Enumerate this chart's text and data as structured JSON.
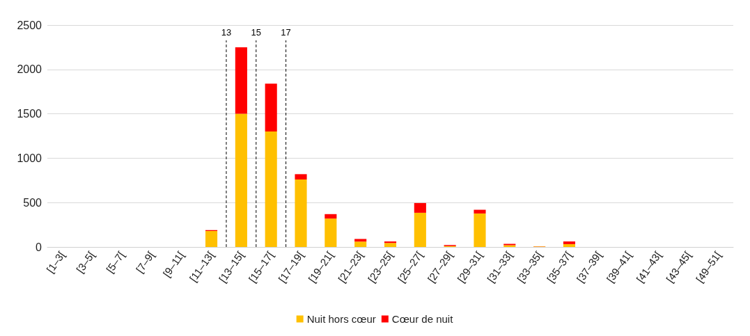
{
  "chart_data": {
    "type": "bar",
    "stacked": true,
    "categories": [
      "[1–3[",
      "[3–5[",
      "[5–7[",
      "[7–9[",
      "[9–11[",
      "[11–13[",
      "[13–15[",
      "[15–17[",
      "[17–19[",
      "[19–21[",
      "[21–23[",
      "[23–25[",
      "[25–27[",
      "[27–29[",
      "[29–31[",
      "[31–33[",
      "[33–35[",
      "[35–37[",
      "[37–39[",
      "[39–41[",
      "[41–43[",
      "[43–45[",
      "[49–51["
    ],
    "series": [
      {
        "name": "Nuit hors cœur",
        "color": "#ffc000",
        "values": [
          0,
          0,
          0,
          0,
          0,
          180,
          1500,
          1300,
          760,
          320,
          60,
          45,
          385,
          10,
          377,
          20,
          6,
          32,
          0,
          0,
          0,
          0,
          0
        ]
      },
      {
        "name": "Cœur de nuit",
        "color": "#ff0000",
        "values": [
          0,
          0,
          0,
          0,
          0,
          10,
          750,
          540,
          60,
          50,
          30,
          17,
          110,
          12,
          42,
          15,
          2,
          30,
          0,
          0,
          0,
          0,
          0
        ]
      }
    ],
    "ylim": [
      0,
      2500
    ],
    "yticks": [
      0,
      500,
      1000,
      1500,
      2000,
      2500
    ],
    "grid": "y",
    "legend": "bottom",
    "ref_lines": [
      {
        "axis": "x",
        "value": "[13–15[",
        "label": "13",
        "line_style": "dashed",
        "color": "#000000"
      },
      {
        "axis": "x",
        "value": "[15–17[",
        "label": "15",
        "line_style": "dashed",
        "color": "#000000"
      },
      {
        "axis": "x",
        "value": "[17–19[",
        "label": "17",
        "line_style": "dashed",
        "color": "#000000"
      }
    ]
  }
}
